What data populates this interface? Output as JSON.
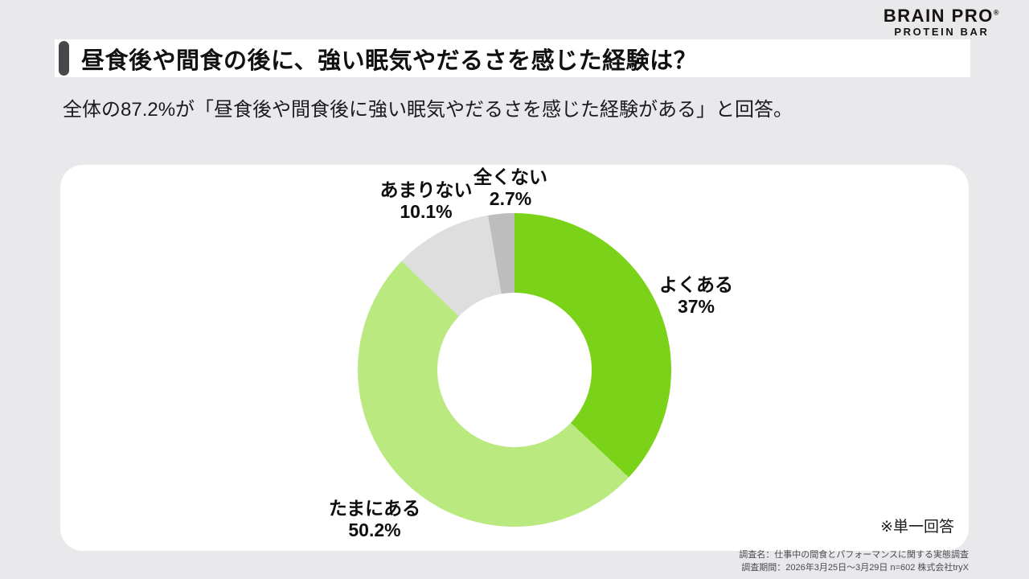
{
  "page": {
    "background": "#E9E9EC",
    "card_background": "#FFFFFF",
    "accent_bar_color": "#48484C"
  },
  "logo": {
    "line1": "BRAIN PRO",
    "reg_mark": "®",
    "line2": "PROTEIN BAR"
  },
  "header": {
    "title": "昼食後や間食の後に、強い眠気やだるさを感じた経験は？",
    "subtitle": "全体の87.2%が「昼食後や間食後に強い眠気やだるさを感じた経験がある」と回答。"
  },
  "chart_data": {
    "type": "pie",
    "style": "donut",
    "title": "昼食後や間食の後に、強い眠気やだるさを感じた経験は？",
    "start_angle_deg": 0,
    "direction": "clockwise",
    "inner_radius_ratio": 0.49,
    "legend_position": "labels-around-donut",
    "segments": [
      {
        "label": "よくある",
        "value": 37,
        "display": "37%",
        "color": "#7AD219"
      },
      {
        "label": "たまにある",
        "value": 50.2,
        "display": "50.2%",
        "color": "#B9E97F"
      },
      {
        "label": "あまりない",
        "value": 10.1,
        "display": "10.1%",
        "color": "#DEDEDE"
      },
      {
        "label": "全くない",
        "value": 2.7,
        "display": "2.7%",
        "color": "#BDBDBD"
      }
    ],
    "note": "※単一回答"
  },
  "footer": {
    "line1": "調査名：仕事中の間食とパフォーマンスに関する実態調査",
    "line2": "調査期間：2026年3月25日〜3月29日 n=602 株式会社tryX"
  }
}
